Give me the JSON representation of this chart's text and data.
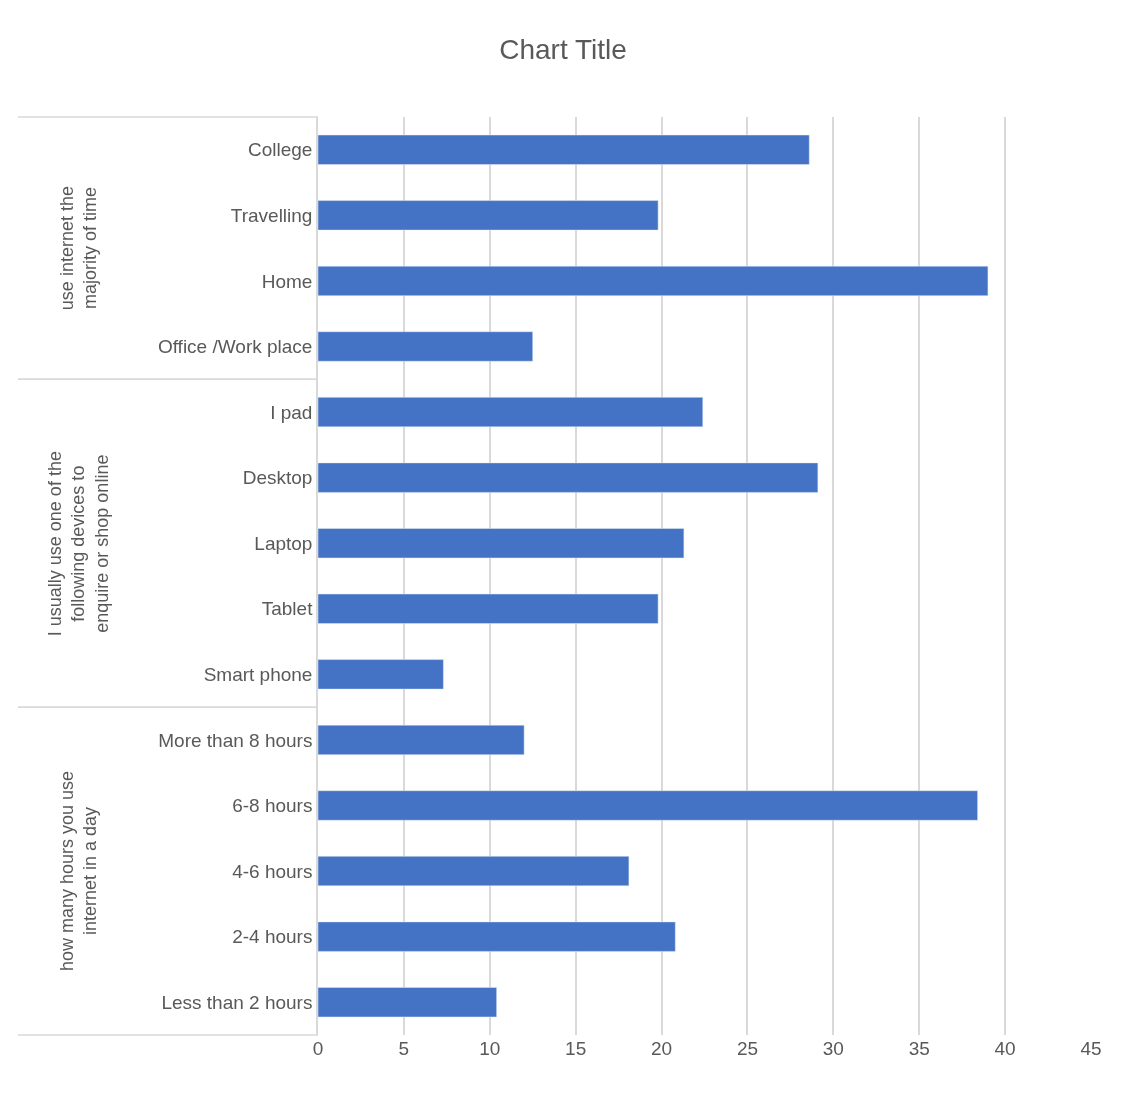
{
  "chart_data": {
    "type": "bar",
    "orientation": "horizontal",
    "title": "Chart Title",
    "categories": [
      "College",
      "Travelling",
      "Home",
      "Office /Work place",
      "I pad",
      "Desktop",
      "Laptop",
      "Tablet",
      "Smart phone",
      "More than 8 hours",
      "6-8 hours",
      "4-6 hours",
      "2-4 hours",
      "Less than 2 hours"
    ],
    "values": [
      28.6,
      19.8,
      39.0,
      12.5,
      22.4,
      29.1,
      21.3,
      19.8,
      7.3,
      12.0,
      38.4,
      18.1,
      20.8,
      10.4
    ],
    "color": "#4472c4",
    "xlim": [
      0,
      45
    ],
    "xticks": [
      0,
      5,
      10,
      15,
      20,
      25,
      30,
      35,
      40,
      45
    ],
    "grid": "x",
    "legend": false,
    "annotations": [
      "use internet the majority of time",
      "I usually use one of the following devices to enquire or shop online",
      "how many hours you use internet in a day"
    ]
  }
}
